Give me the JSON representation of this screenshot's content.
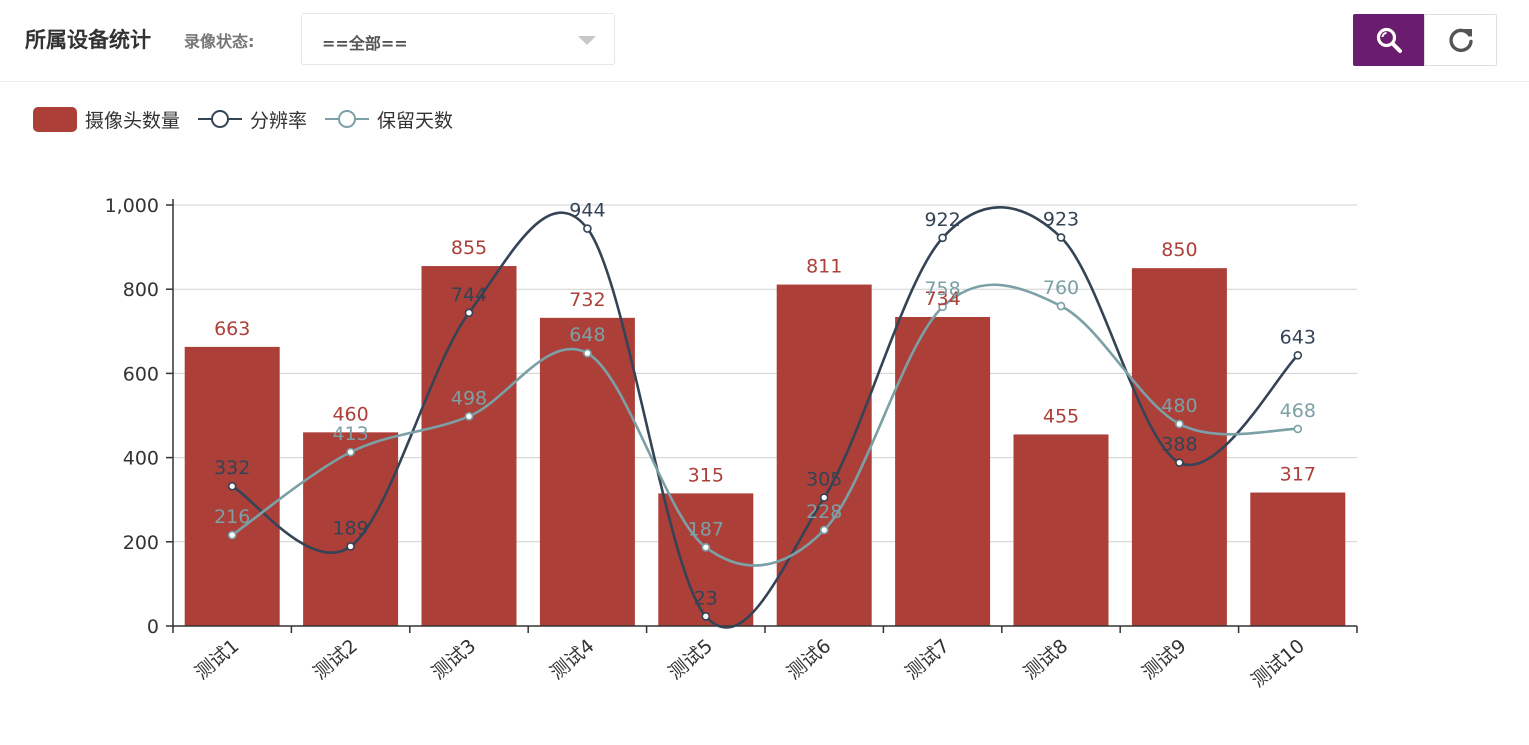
{
  "header": {
    "title": "所属设备统计",
    "filter_label": "录像状态:",
    "filter_value": "==全部=="
  },
  "toolbar": {
    "search_icon": "search-icon",
    "refresh_icon": "refresh-icon",
    "search_color": "#6a1c6e"
  },
  "chart_data": {
    "type": "bar",
    "title": "",
    "xlabel": "",
    "ylabel": "",
    "ylim": [
      0,
      1000
    ],
    "yticks": [
      "0",
      "200",
      "400",
      "600",
      "800",
      "1,000"
    ],
    "ytick_values": [
      0,
      200,
      400,
      600,
      800,
      1000
    ],
    "categories": [
      "测试1",
      "测试2",
      "测试3",
      "测试4",
      "测试5",
      "测试6",
      "测试7",
      "测试8",
      "测试9",
      "测试10"
    ],
    "legend_position": "top-left",
    "grid": true,
    "series": [
      {
        "name": "摄像头数量",
        "type": "bar",
        "color": "#ad3f39",
        "values": [
          663,
          460,
          855,
          732,
          315,
          811,
          734,
          455,
          850,
          317
        ]
      },
      {
        "name": "分辨率",
        "type": "line",
        "color": "#344355",
        "values": [
          332,
          189,
          744,
          944,
          23,
          305,
          922,
          923,
          388,
          643
        ]
      },
      {
        "name": "保留天数",
        "type": "line",
        "color": "#7ba0a6",
        "values": [
          216,
          413,
          498,
          648,
          187,
          228,
          758,
          760,
          480,
          468
        ]
      }
    ]
  }
}
